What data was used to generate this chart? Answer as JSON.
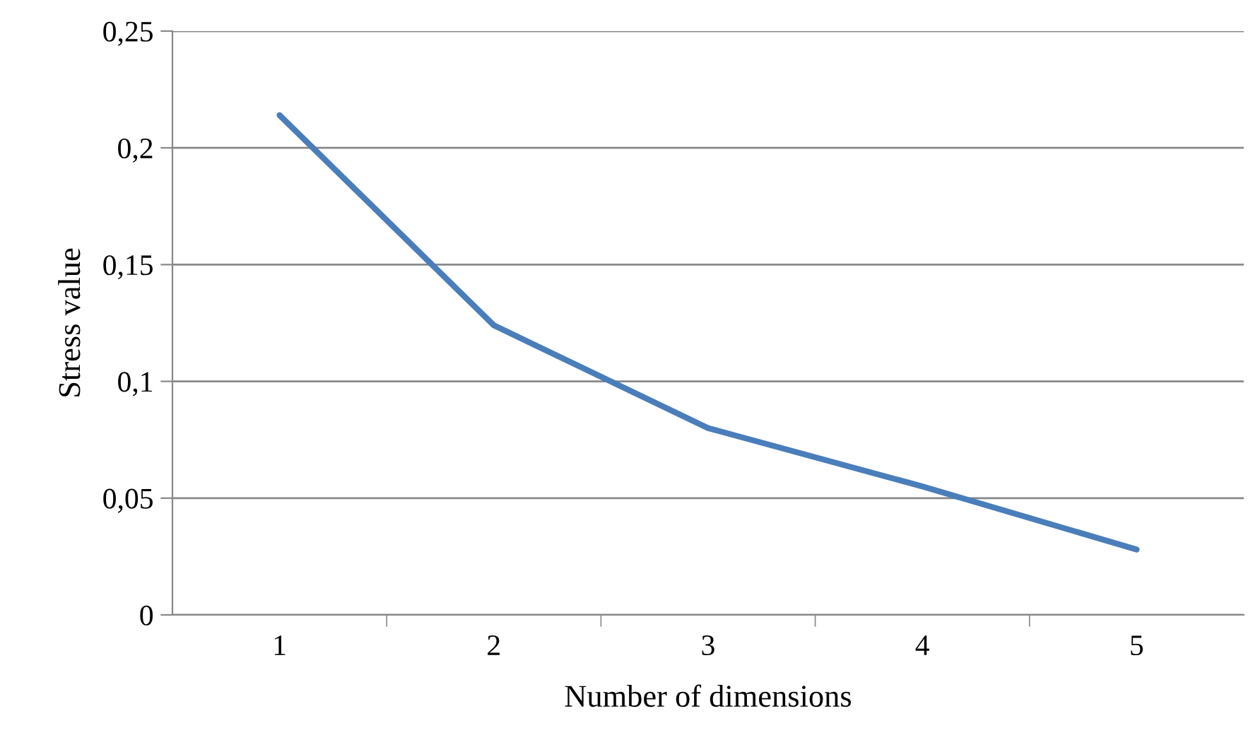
{
  "chart_data": {
    "type": "line",
    "xlabel": "Number of dimensions",
    "ylabel": "Stress value",
    "categories": [
      "1",
      "2",
      "3",
      "4",
      "5"
    ],
    "series": [
      {
        "color": "#4a7ebb",
        "values": [
          0.214,
          0.124,
          0.08,
          0.055,
          0.028
        ]
      }
    ],
    "ylim": [
      0,
      0.25
    ],
    "yticks": [
      {
        "value": 0,
        "label": "0"
      },
      {
        "value": 0.05,
        "label": "0,05"
      },
      {
        "value": 0.1,
        "label": "0,1"
      },
      {
        "value": 0.15,
        "label": "0,15"
      },
      {
        "value": 0.2,
        "label": "0,2"
      },
      {
        "value": 0.25,
        "label": "0,25"
      }
    ],
    "grid": "y",
    "marker": "none",
    "line_style": "solid"
  }
}
